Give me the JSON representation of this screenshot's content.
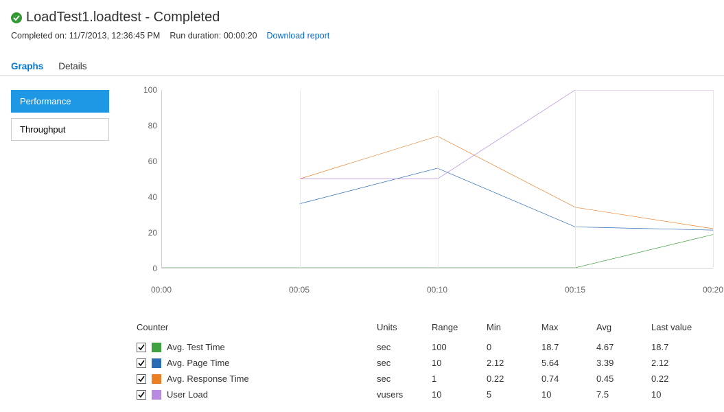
{
  "header": {
    "title": "LoadTest1.loadtest - Completed",
    "completed_label": "Completed on:",
    "completed_value": "11/7/2013, 12:36:45 PM",
    "duration_label": "Run duration:",
    "duration_value": "00:00:20",
    "download_link": "Download report",
    "status_color": "#339933"
  },
  "tabs": [
    {
      "label": "Graphs",
      "active": true
    },
    {
      "label": "Details",
      "active": false
    }
  ],
  "side_buttons": [
    {
      "label": "Performance",
      "active": true
    },
    {
      "label": "Throughput",
      "active": false
    }
  ],
  "chart": {
    "type": "line",
    "ylim": [
      0,
      100
    ],
    "yticks": [
      0,
      20,
      40,
      60,
      80,
      100
    ],
    "xlim": [
      0,
      20
    ],
    "xticks": [
      0,
      5,
      10,
      15,
      20
    ],
    "xtick_labels": [
      "00:00",
      "00:05",
      "00:10",
      "00:15",
      "00:20"
    ],
    "grid_color": "#e6e6e6",
    "axis_color": "#d0d0d0",
    "background_color": "#ffffff",
    "line_width": 2,
    "series": [
      {
        "name": "Avg. Test Time",
        "color": "#3ea03e",
        "x": [
          0,
          5,
          10,
          15,
          20
        ],
        "y": [
          0,
          0,
          0,
          0,
          18.7
        ]
      },
      {
        "name": "Avg. Page Time",
        "color": "#2a6bb5",
        "x": [
          5,
          10,
          15,
          20
        ],
        "y": [
          36,
          56,
          23,
          21.2
        ]
      },
      {
        "name": "Avg. Response Time",
        "color": "#e97f26",
        "x": [
          5,
          10,
          15,
          20
        ],
        "y": [
          50,
          74,
          34,
          22
        ]
      },
      {
        "name": "User Load",
        "color": "#b88ae0",
        "x": [
          5,
          10,
          15,
          20
        ],
        "y": [
          50,
          50,
          100,
          100
        ]
      }
    ]
  },
  "table": {
    "headers": {
      "counter": "Counter",
      "units": "Units",
      "range": "Range",
      "min": "Min",
      "max": "Max",
      "avg": "Avg",
      "last": "Last value"
    },
    "rows": [
      {
        "checked": true,
        "color": "#3ea03e",
        "name": "Avg. Test Time",
        "units": "sec",
        "range": "100",
        "min": "0",
        "max": "18.7",
        "avg": "4.67",
        "last": "18.7"
      },
      {
        "checked": true,
        "color": "#2a6bb5",
        "name": "Avg. Page Time",
        "units": "sec",
        "range": "10",
        "min": "2.12",
        "max": "5.64",
        "avg": "3.39",
        "last": "2.12"
      },
      {
        "checked": true,
        "color": "#e97f26",
        "name": "Avg. Response Time",
        "units": "sec",
        "range": "1",
        "min": "0.22",
        "max": "0.74",
        "avg": "0.45",
        "last": "0.22"
      },
      {
        "checked": true,
        "color": "#b88ae0",
        "name": "User Load",
        "units": "vusers",
        "range": "10",
        "min": "5",
        "max": "10",
        "avg": "7.5",
        "last": "10"
      }
    ]
  }
}
